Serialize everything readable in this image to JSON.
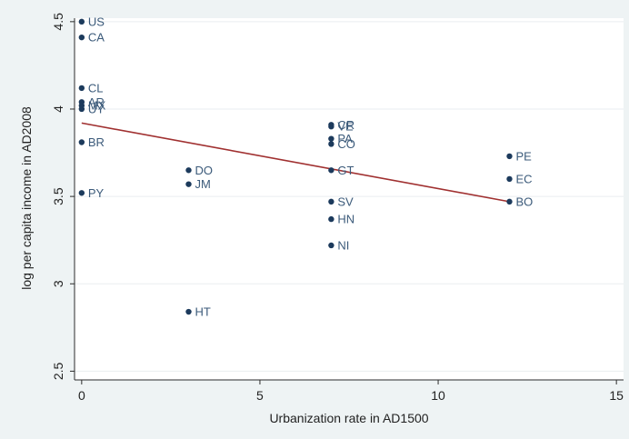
{
  "chart_data": {
    "type": "scatter",
    "xlabel": "Urbanization rate in AD1500",
    "ylabel": "log per capita income in AD2008",
    "xlim": [
      -0.2,
      15.2
    ],
    "ylim": [
      2.45,
      4.52
    ],
    "x_ticks": [
      0,
      5,
      10,
      15
    ],
    "y_ticks": [
      2.5,
      3,
      3.5,
      4,
      4.5
    ],
    "x_tick_labels": [
      "0",
      "5",
      "10",
      "15"
    ],
    "y_tick_labels": [
      "2.5",
      "3",
      "3.5",
      "4",
      "4.5"
    ],
    "grid": "horizontal",
    "legend": "none",
    "points": [
      {
        "label": "US",
        "x": 0,
        "y": 4.5
      },
      {
        "label": "CA",
        "x": 0,
        "y": 4.41
      },
      {
        "label": "CL",
        "x": 0,
        "y": 4.12
      },
      {
        "label": "AR",
        "x": 0,
        "y": 4.04
      },
      {
        "label": "MX",
        "x": 0,
        "y": 4.02
      },
      {
        "label": "UY",
        "x": 0,
        "y": 4.0
      },
      {
        "label": "BR",
        "x": 0,
        "y": 3.81
      },
      {
        "label": "PY",
        "x": 0,
        "y": 3.52
      },
      {
        "label": "DO",
        "x": 3,
        "y": 3.65
      },
      {
        "label": "JM",
        "x": 3,
        "y": 3.57
      },
      {
        "label": "HT",
        "x": 3,
        "y": 2.84
      },
      {
        "label": "CR",
        "x": 7,
        "y": 3.91
      },
      {
        "label": "VE",
        "x": 7,
        "y": 3.9
      },
      {
        "label": "PA",
        "x": 7,
        "y": 3.83
      },
      {
        "label": "CO",
        "x": 7,
        "y": 3.8
      },
      {
        "label": "GT",
        "x": 7,
        "y": 3.65
      },
      {
        "label": "SV",
        "x": 7,
        "y": 3.47
      },
      {
        "label": "HN",
        "x": 7,
        "y": 3.37
      },
      {
        "label": "NI",
        "x": 7,
        "y": 3.22
      },
      {
        "label": "PE",
        "x": 12,
        "y": 3.73
      },
      {
        "label": "EC",
        "x": 12,
        "y": 3.6
      },
      {
        "label": "BO",
        "x": 12,
        "y": 3.47
      }
    ],
    "fit_line": {
      "x": [
        0,
        12
      ],
      "y": [
        3.92,
        3.47
      ]
    },
    "colors": {
      "plot_bg": "#eef3f4",
      "panel_bg": "#ffffff",
      "marker": "#1c3a5c",
      "label": "#3b5a7a",
      "fit_line": "#a03030",
      "grid": "#ffffff",
      "axis": "#2b2b2b"
    }
  }
}
